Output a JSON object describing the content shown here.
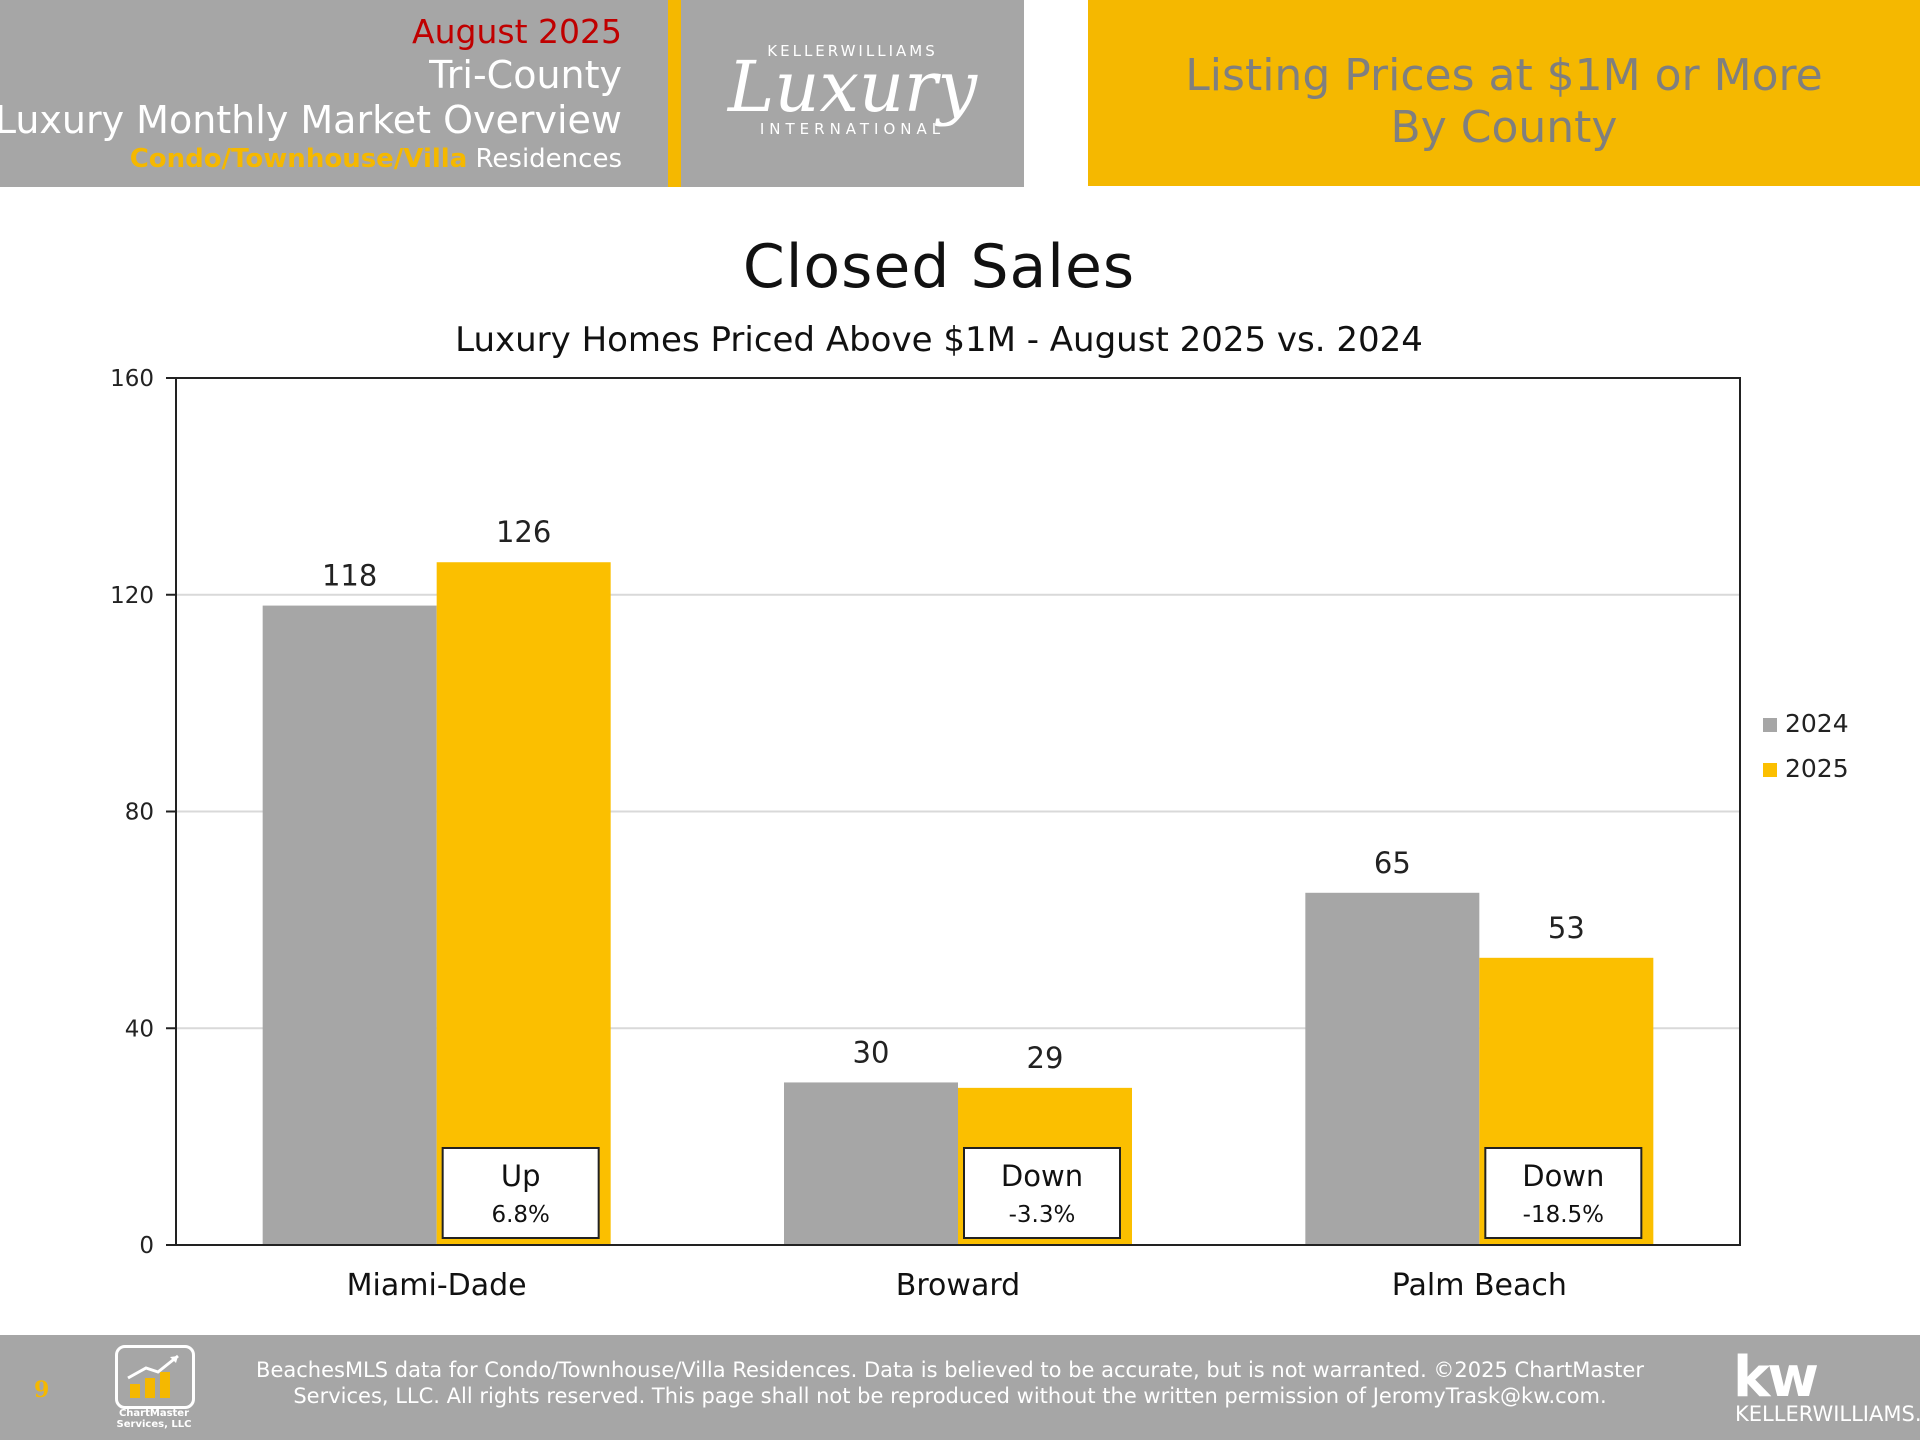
{
  "header": {
    "month": "August 2025",
    "region": "Tri-County",
    "overview": "Luxury Monthly Market Overview",
    "property_type_accent": "Condo/Townhouse/Villa",
    "property_type_suffix": " Residences",
    "logo_top": "KELLERWILLIAMS",
    "logo_script": "Luxury",
    "logo_bottom": "INTERNATIONAL",
    "right_line1": "Listing Prices at $1M or More",
    "right_line2": "By County"
  },
  "chart_data": {
    "type": "bar",
    "title": "Closed Sales",
    "subtitle": "Luxury Homes Priced Above $1M - August 2025 vs. 2024",
    "categories": [
      "Miami-Dade",
      "Broward",
      "Palm Beach"
    ],
    "series": [
      {
        "name": "2024",
        "values": [
          118,
          30,
          65
        ],
        "color": "#a6a6a6"
      },
      {
        "name": "2025",
        "values": [
          126,
          29,
          53
        ],
        "color": "#fbbf00"
      }
    ],
    "ylim": [
      0,
      160
    ],
    "yticks": [
      0,
      40,
      80,
      120,
      160
    ],
    "grid": true,
    "legend": "right",
    "annotations": [
      {
        "category": "Miami-Dade",
        "direction": "Up",
        "change": "6.8%"
      },
      {
        "category": "Broward",
        "direction": "Down",
        "change": "-3.3%"
      },
      {
        "category": "Palm Beach",
        "direction": "Down",
        "change": "-18.5%"
      }
    ]
  },
  "footer": {
    "page_number": "9",
    "chartmaster_name_line1": "ChartMaster",
    "chartmaster_name_line2": "Services, LLC",
    "disclaimer_line1": "BeachesMLS data for Condo/Townhouse/Villa Residences.  Data is believed to be accurate, but is not warranted.   ©2025  ChartMaster",
    "disclaimer_line2": "Services, LLC.  All rights reserved. This page shall not be reproduced without the written permission of JeromyTrask@kw.com.",
    "kw_mark": "kw",
    "kw_name": "KELLERWILLIAMS."
  }
}
